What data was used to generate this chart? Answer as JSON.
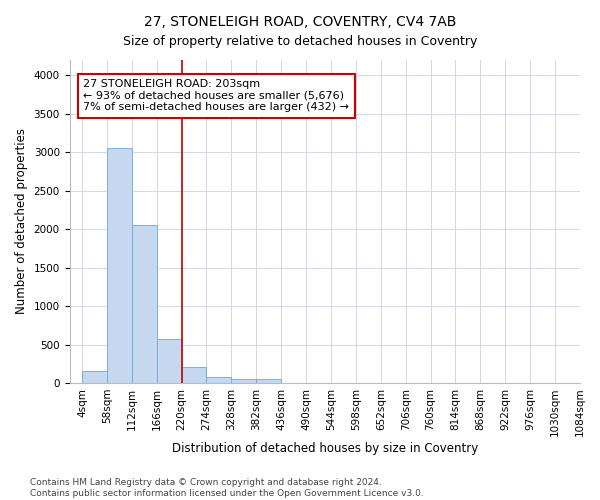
{
  "title": "27, STONELEIGH ROAD, COVENTRY, CV4 7AB",
  "subtitle": "Size of property relative to detached houses in Coventry",
  "xlabel": "Distribution of detached houses by size in Coventry",
  "ylabel": "Number of detached properties",
  "bar_color": "#c5d8f0",
  "bar_edge_color": "#6baad8",
  "vline_color": "#cc0000",
  "vline_position": 4.0,
  "annotation_text": "27 STONELEIGH ROAD: 203sqm\n← 93% of detached houses are smaller (5,676)\n7% of semi-detached houses are larger (432) →",
  "annotation_box_color": "#cc0000",
  "bin_labels": [
    "4sqm",
    "58sqm",
    "112sqm",
    "166sqm",
    "220sqm",
    "274sqm",
    "328sqm",
    "382sqm",
    "436sqm",
    "490sqm",
    "544sqm",
    "598sqm",
    "652sqm",
    "706sqm",
    "760sqm",
    "814sqm",
    "868sqm",
    "922sqm",
    "976sqm",
    "1030sqm",
    "1084sqm"
  ],
  "bar_values": [
    150,
    3060,
    2060,
    570,
    210,
    80,
    55,
    50,
    0,
    0,
    0,
    0,
    0,
    0,
    0,
    0,
    0,
    0,
    0,
    0
  ],
  "ylim": [
    0,
    4200
  ],
  "yticks": [
    0,
    500,
    1000,
    1500,
    2000,
    2500,
    3000,
    3500,
    4000
  ],
  "footer_line1": "Contains HM Land Registry data © Crown copyright and database right 2024.",
  "footer_line2": "Contains public sector information licensed under the Open Government Licence v3.0.",
  "bg_color": "#ffffff",
  "grid_color": "#d0d8e8",
  "title_fontsize": 10,
  "subtitle_fontsize": 9,
  "axis_label_fontsize": 8.5,
  "tick_fontsize": 7.5,
  "annotation_fontsize": 8,
  "footer_fontsize": 6.5
}
